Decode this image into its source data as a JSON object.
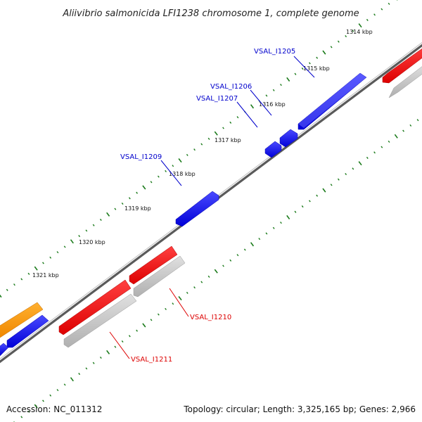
{
  "title": "Aliivibrio salmonicida LFI1238 chromosome 1, complete genome",
  "accession": "Accession: NC_011312",
  "summary": "Topology: circular; Length: 3,325,165 bp; Genes: 2,966",
  "kbp_labels": [
    "1314 kbp",
    "1315 kbp",
    "1316 kbp",
    "1317 kbp",
    "1318 kbp",
    "1319 kbp",
    "1320 kbp",
    "1321 kbp"
  ],
  "gene_labels": {
    "VSAL_I1205": "VSAL_I1205",
    "VSAL_I1206": "VSAL_I1206",
    "VSAL_I1207": "VSAL_I1207",
    "VSAL_I1209": "VSAL_I1209",
    "VSAL_I1210": "VSAL_I1210",
    "VSAL_I1211": "VSAL_I1211"
  },
  "colors": {
    "forward_cds": "#0000ee",
    "reverse_cds": "#ee0000",
    "reverse_shadow": "#c0c0c0",
    "other_feature": "#ff9900",
    "backbone": "#777777",
    "tick": "#1a7a1a",
    "forward_label": "#0000cc",
    "reverse_label": "#dd0000"
  }
}
